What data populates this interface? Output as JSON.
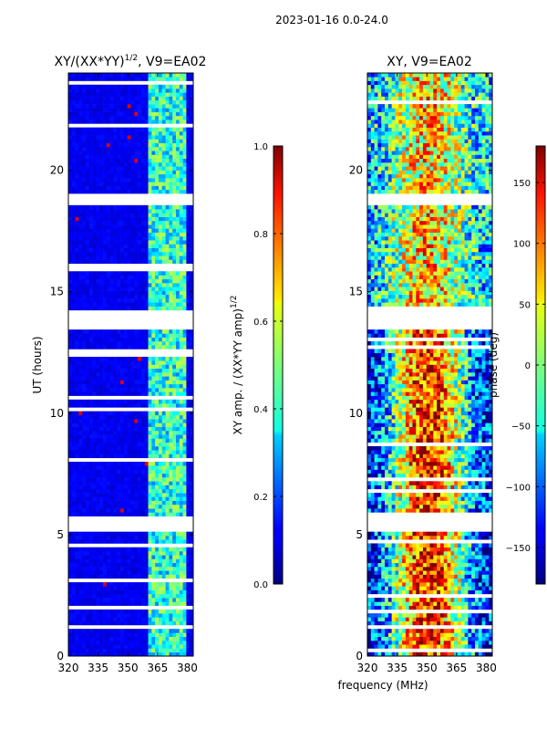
{
  "figure_title": "2023-01-16 0.0-24.0",
  "chart_data": [
    {
      "type": "heatmap",
      "title_main": "XY/(XX*YY)",
      "title_exp": "1/2",
      "title_suffix": ", V9=EA02",
      "ylabel": "UT (hours)",
      "xlabel": "",
      "xlim": [
        320,
        383
      ],
      "ylim": [
        0,
        24
      ],
      "xticks": [
        320,
        335,
        350,
        365,
        380
      ],
      "yticks": [
        0,
        5,
        10,
        15,
        20
      ],
      "colorbar": {
        "label_main": "XY amp. / (XX*YY amp)",
        "label_exp": "1/2",
        "range": [
          0.0,
          1.0
        ],
        "ticks": [
          "0.0",
          "0.2",
          "0.4",
          "0.6",
          "0.8",
          "1.0"
        ],
        "colormap": "jet"
      },
      "gaps_hours": [
        [
          5.05,
          5.8
        ],
        [
          13.5,
          14.2
        ],
        [
          18.5,
          19.0
        ],
        [
          1.1,
          1.3
        ]
      ],
      "active_band_mhz": [
        361,
        380
      ]
    },
    {
      "type": "heatmap",
      "title": "XY, V9=EA02",
      "xlabel": "frequency (MHz)",
      "ylabel": "",
      "xlim": [
        320,
        383
      ],
      "ylim": [
        0,
        24
      ],
      "xticks": [
        320,
        335,
        350,
        365,
        380
      ],
      "yticks": [
        0,
        5,
        10,
        15,
        20
      ],
      "colorbar": {
        "label": "phase (deg)",
        "range": [
          -180,
          180
        ],
        "ticks": [
          "−150",
          "−100",
          "−50",
          "0",
          "50",
          "100",
          "150"
        ],
        "colormap": "jet"
      },
      "gaps_hours": [
        [
          5.05,
          5.8
        ],
        [
          13.5,
          14.2
        ],
        [
          18.5,
          19.0
        ],
        [
          1.1,
          1.3
        ]
      ]
    }
  ]
}
